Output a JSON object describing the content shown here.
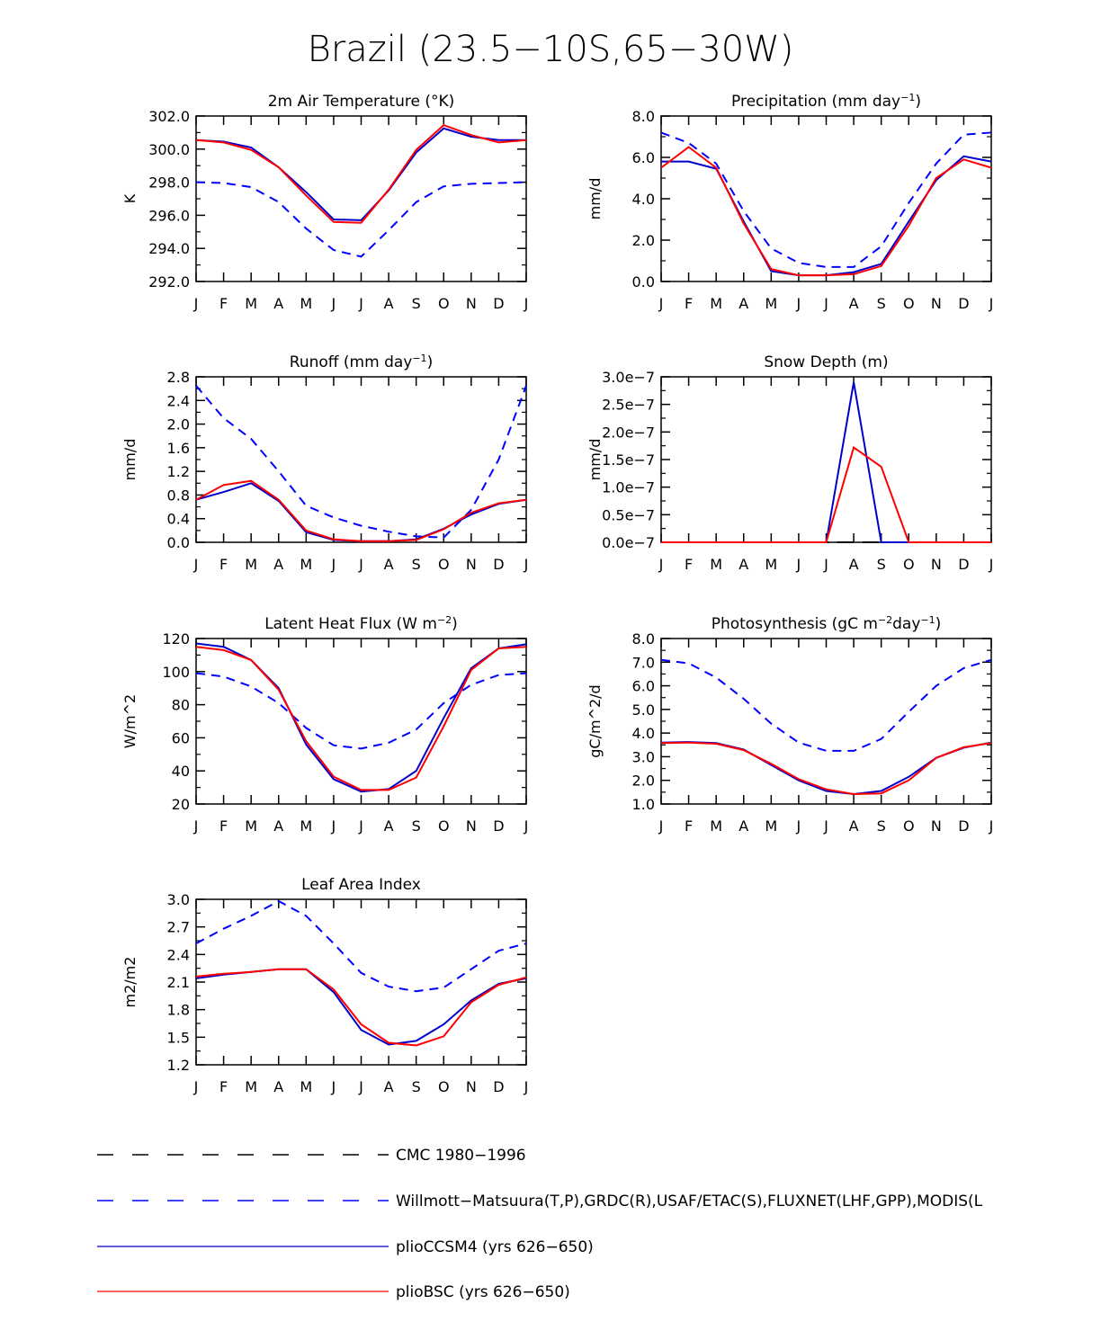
{
  "title": "Brazil (23.5−10S,65−30W)",
  "months": [
    "J",
    "F",
    "M",
    "A",
    "M",
    "J",
    "J",
    "A",
    "S",
    "O",
    "N",
    "D",
    "J"
  ],
  "colors": {
    "cmc": "#000000",
    "obs": "#0000ff",
    "ccsm": "#0000cc",
    "bsc": "#ff0000"
  },
  "legend": [
    {
      "key": "cmc",
      "label": "CMC 1980−1996",
      "style": "dashed",
      "color": "#000000"
    },
    {
      "key": "obs",
      "label": "Willmott−Matsuura(T,P),GRDC(R),USAF/ETAC(S),FLUXNET(LHF,GPP),MODIS(L",
      "style": "dashed",
      "color": "#0000ff"
    },
    {
      "key": "ccsm",
      "label": "plioCCSM4 (yrs 626−650)",
      "style": "solid",
      "color": "#0000cc"
    },
    {
      "key": "bsc",
      "label": "plioBSC (yrs 626−650)",
      "style": "solid",
      "color": "#ff0000"
    }
  ],
  "chart_data": [
    {
      "type": "line",
      "title_pre": "2m Air Temperature (°K)",
      "title_sup": "",
      "title_post": "",
      "ylabel": "K",
      "ylim": [
        292,
        302
      ],
      "yticks": [
        292,
        294,
        296,
        298,
        300,
        302
      ],
      "ydec": 1,
      "ysuffix": "",
      "x": [
        "J",
        "F",
        "M",
        "A",
        "M",
        "J",
        "J",
        "A",
        "S",
        "O",
        "N",
        "D",
        "J"
      ],
      "series": [
        {
          "key": "obs",
          "name": "Willmott-Matsuura",
          "values": [
            298.0,
            297.95,
            297.7,
            296.8,
            295.2,
            293.9,
            293.5,
            295.1,
            296.8,
            297.75,
            297.9,
            297.95,
            298.0
          ]
        },
        {
          "key": "ccsm",
          "name": "plioCCSM4",
          "values": [
            300.55,
            300.45,
            300.1,
            298.9,
            297.4,
            295.75,
            295.7,
            297.5,
            299.8,
            301.25,
            300.75,
            300.55,
            300.55
          ]
        },
        {
          "key": "bsc",
          "name": "plioBSC",
          "values": [
            300.55,
            300.4,
            299.95,
            298.9,
            297.2,
            295.6,
            295.55,
            297.55,
            299.95,
            301.45,
            300.85,
            300.4,
            300.55
          ]
        }
      ]
    },
    {
      "type": "line",
      "title_pre": "Precipitation (mm day",
      "title_sup": "−1",
      "title_post": ")",
      "ylabel": "mm/d",
      "ylim": [
        0,
        8
      ],
      "yticks": [
        0,
        2,
        4,
        6,
        8
      ],
      "ydec": 1,
      "ysuffix": "",
      "x": [
        "J",
        "F",
        "M",
        "A",
        "M",
        "J",
        "J",
        "A",
        "S",
        "O",
        "N",
        "D",
        "J"
      ],
      "series": [
        {
          "key": "obs",
          "name": "Willmott-Matsuura",
          "values": [
            7.2,
            6.7,
            5.7,
            3.4,
            1.6,
            0.9,
            0.7,
            0.7,
            1.7,
            3.8,
            5.7,
            7.1,
            7.2
          ]
        },
        {
          "key": "ccsm",
          "name": "plioCCSM4",
          "values": [
            5.8,
            5.8,
            5.45,
            2.9,
            0.5,
            0.3,
            0.3,
            0.45,
            0.85,
            2.9,
            4.9,
            6.05,
            5.8
          ]
        },
        {
          "key": "bsc",
          "name": "plioBSC",
          "values": [
            5.5,
            6.5,
            5.5,
            2.8,
            0.6,
            0.3,
            0.3,
            0.35,
            0.75,
            2.7,
            5.0,
            5.9,
            5.5
          ]
        }
      ]
    },
    {
      "type": "line",
      "title_pre": "Runoff (mm day",
      "title_sup": "−1",
      "title_post": ")",
      "ylabel": "mm/d",
      "ylim": [
        0,
        2.8
      ],
      "yticks": [
        0,
        0.4,
        0.8,
        1.2,
        1.6,
        2.0,
        2.4,
        2.8
      ],
      "ydec": 1,
      "ysuffix": "",
      "x": [
        "J",
        "F",
        "M",
        "A",
        "M",
        "J",
        "J",
        "A",
        "S",
        "O",
        "N",
        "D",
        "J"
      ],
      "series": [
        {
          "key": "obs",
          "name": "GRDC",
          "values": [
            2.65,
            2.1,
            1.75,
            1.2,
            0.62,
            0.42,
            0.28,
            0.18,
            0.1,
            0.08,
            0.55,
            1.4,
            2.65
          ]
        },
        {
          "key": "ccsm",
          "name": "plioCCSM4",
          "values": [
            0.72,
            0.85,
            1.0,
            0.7,
            0.17,
            0.04,
            0.02,
            0.02,
            0.05,
            0.23,
            0.47,
            0.65,
            0.72
          ]
        },
        {
          "key": "bsc",
          "name": "plioBSC",
          "values": [
            0.72,
            0.97,
            1.04,
            0.72,
            0.2,
            0.05,
            0.02,
            0.02,
            0.04,
            0.22,
            0.5,
            0.66,
            0.72
          ]
        }
      ]
    },
    {
      "type": "line",
      "title_pre": "Snow Depth (m)",
      "title_sup": "",
      "title_post": "",
      "ylabel": "mm/d",
      "ylim": [
        0,
        3.0
      ],
      "yticks": [
        0,
        0.5,
        1.0,
        1.5,
        2.0,
        2.5,
        3.0
      ],
      "ydec": 1,
      "ysuffix": "e−7",
      "x": [
        "J",
        "F",
        "M",
        "A",
        "M",
        "J",
        "J",
        "A",
        "S",
        "O",
        "N",
        "D",
        "J"
      ],
      "series": [
        {
          "key": "cmc",
          "name": "CMC",
          "values": [
            0,
            0,
            0,
            0,
            0,
            0,
            0,
            0,
            0,
            0,
            0,
            0,
            0
          ]
        },
        {
          "key": "ccsm",
          "name": "plioCCSM4",
          "values": [
            0,
            0,
            0,
            0,
            0,
            0,
            0,
            2.9,
            0,
            0,
            0,
            0,
            0
          ]
        },
        {
          "key": "bsc",
          "name": "plioBSC",
          "values": [
            0,
            0,
            0,
            0,
            0,
            0,
            0,
            1.72,
            1.37,
            0,
            0,
            0,
            0
          ]
        }
      ]
    },
    {
      "type": "line",
      "title_pre": "Latent Heat Flux (W m",
      "title_sup": "−2",
      "title_post": ")",
      "ylabel": "W/m^2",
      "ylim": [
        20,
        120
      ],
      "yticks": [
        20,
        40,
        60,
        80,
        100,
        120
      ],
      "ydec": 0,
      "ysuffix": "",
      "x": [
        "J",
        "F",
        "M",
        "A",
        "M",
        "J",
        "J",
        "A",
        "S",
        "O",
        "N",
        "D",
        "J"
      ],
      "series": [
        {
          "key": "obs",
          "name": "FLUXNET",
          "values": [
            99,
            97,
            91,
            81,
            66,
            55.5,
            53.5,
            57,
            65,
            81,
            92,
            98,
            99
          ]
        },
        {
          "key": "ccsm",
          "name": "plioCCSM4",
          "values": [
            117,
            115,
            107,
            90,
            56,
            35,
            27.5,
            29,
            40,
            72,
            102,
            114,
            116.5
          ]
        },
        {
          "key": "bsc",
          "name": "plioBSC",
          "values": [
            115,
            113,
            107,
            89,
            58,
            36.5,
            28.5,
            28.5,
            36,
            67,
            101,
            114,
            115
          ]
        }
      ]
    },
    {
      "type": "line",
      "title_pre": "Photosynthesis (gC m",
      "title_sup": "−2",
      "title_mid": "day",
      "title_sup2": "−1",
      "title_post": ")",
      "ylabel": "gC/m^2/d",
      "ylim": [
        1,
        8
      ],
      "yticks": [
        1,
        2,
        3,
        4,
        5,
        6,
        7,
        8
      ],
      "ydec": 1,
      "ysuffix": "",
      "x": [
        "J",
        "F",
        "M",
        "A",
        "M",
        "J",
        "J",
        "A",
        "S",
        "O",
        "N",
        "D",
        "J"
      ],
      "series": [
        {
          "key": "obs",
          "name": "FLUXNET",
          "values": [
            7.1,
            6.95,
            6.35,
            5.45,
            4.4,
            3.6,
            3.25,
            3.25,
            3.75,
            4.9,
            6.0,
            6.75,
            7.1
          ]
        },
        {
          "key": "ccsm",
          "name": "plioCCSM4",
          "values": [
            3.6,
            3.62,
            3.58,
            3.3,
            2.65,
            2.0,
            1.55,
            1.42,
            1.55,
            2.15,
            2.95,
            3.38,
            3.6
          ]
        },
        {
          "key": "bsc",
          "name": "plioBSC",
          "values": [
            3.58,
            3.6,
            3.55,
            3.28,
            2.7,
            2.05,
            1.62,
            1.42,
            1.45,
            2.0,
            2.95,
            3.4,
            3.58
          ]
        }
      ]
    },
    {
      "type": "line",
      "title_pre": "Leaf Area Index",
      "title_sup": "",
      "title_post": "",
      "ylabel": "m2/m2",
      "ylim": [
        1.2,
        3.0
      ],
      "yticks": [
        1.2,
        1.5,
        1.8,
        2.1,
        2.4,
        2.7,
        3.0
      ],
      "ydec": 1,
      "ysuffix": "",
      "x": [
        "J",
        "F",
        "M",
        "A",
        "M",
        "J",
        "J",
        "A",
        "S",
        "O",
        "N",
        "D",
        "J"
      ],
      "series": [
        {
          "key": "obs",
          "name": "MODIS",
          "values": [
            2.52,
            2.68,
            2.82,
            2.98,
            2.82,
            2.52,
            2.2,
            2.05,
            2.0,
            2.04,
            2.24,
            2.44,
            2.52
          ]
        },
        {
          "key": "ccsm",
          "name": "plioCCSM4",
          "values": [
            2.14,
            2.18,
            2.21,
            2.24,
            2.24,
            1.99,
            1.58,
            1.42,
            1.46,
            1.64,
            1.9,
            2.08,
            2.14
          ]
        },
        {
          "key": "bsc",
          "name": "plioBSC",
          "values": [
            2.16,
            2.19,
            2.21,
            2.24,
            2.24,
            2.02,
            1.64,
            1.44,
            1.41,
            1.51,
            1.88,
            2.07,
            2.15
          ]
        }
      ]
    }
  ]
}
